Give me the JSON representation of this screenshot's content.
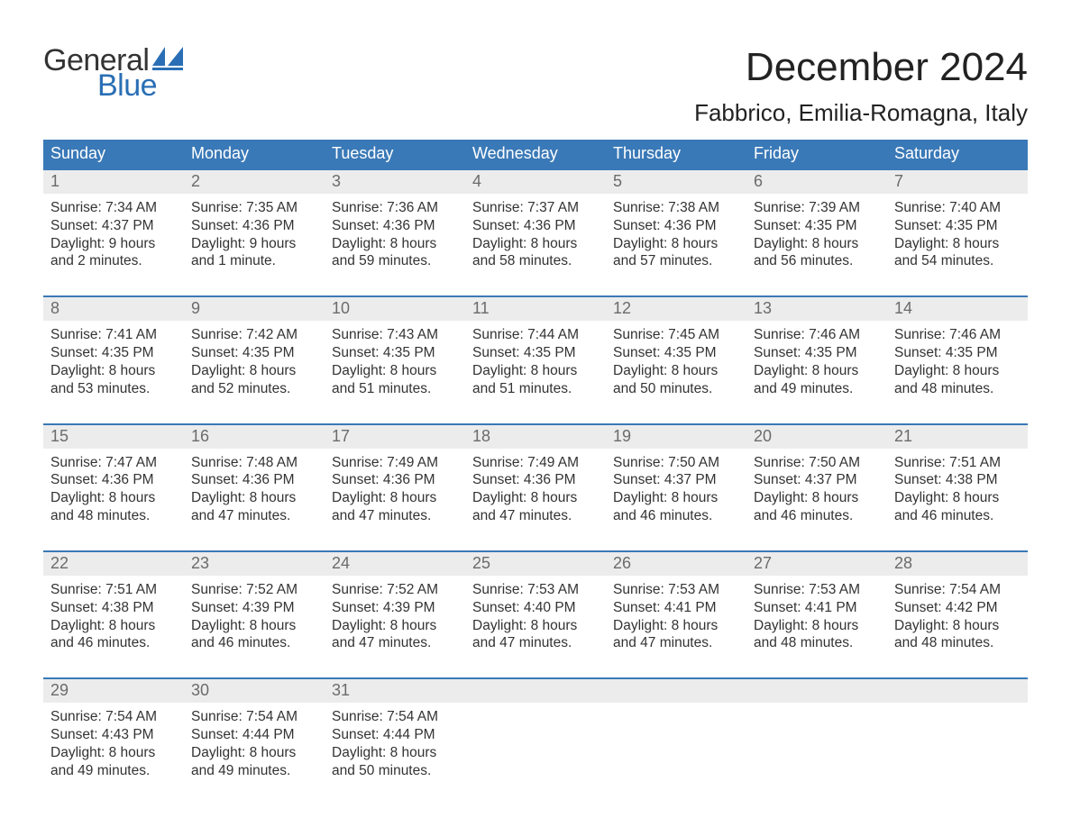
{
  "brand": {
    "word1": "General",
    "word2": "Blue",
    "accent_color": "#2a6fb5"
  },
  "title": "December 2024",
  "location": "Fabbrico, Emilia-Romagna, Italy",
  "colors": {
    "header_bg": "#3a79b7",
    "header_text": "#ffffff",
    "daynum_bg": "#ececec",
    "daynum_text": "#6b6b6b",
    "body_text": "#333333",
    "week_border": "#3a79b7",
    "page_bg": "#ffffff"
  },
  "typography": {
    "title_fontsize": 44,
    "location_fontsize": 26,
    "dow_fontsize": 18,
    "daynum_fontsize": 18,
    "cell_fontsize": 15.5,
    "logo_fontsize": 34
  },
  "layout": {
    "columns": 7,
    "rows": 5,
    "first_day_col": 0
  },
  "days_of_week": [
    "Sunday",
    "Monday",
    "Tuesday",
    "Wednesday",
    "Thursday",
    "Friday",
    "Saturday"
  ],
  "weeks": [
    [
      {
        "n": 1,
        "sunrise": "7:34 AM",
        "sunset": "4:37 PM",
        "daylight": "9 hours and 2 minutes."
      },
      {
        "n": 2,
        "sunrise": "7:35 AM",
        "sunset": "4:36 PM",
        "daylight": "9 hours and 1 minute."
      },
      {
        "n": 3,
        "sunrise": "7:36 AM",
        "sunset": "4:36 PM",
        "daylight": "8 hours and 59 minutes."
      },
      {
        "n": 4,
        "sunrise": "7:37 AM",
        "sunset": "4:36 PM",
        "daylight": "8 hours and 58 minutes."
      },
      {
        "n": 5,
        "sunrise": "7:38 AM",
        "sunset": "4:36 PM",
        "daylight": "8 hours and 57 minutes."
      },
      {
        "n": 6,
        "sunrise": "7:39 AM",
        "sunset": "4:35 PM",
        "daylight": "8 hours and 56 minutes."
      },
      {
        "n": 7,
        "sunrise": "7:40 AM",
        "sunset": "4:35 PM",
        "daylight": "8 hours and 54 minutes."
      }
    ],
    [
      {
        "n": 8,
        "sunrise": "7:41 AM",
        "sunset": "4:35 PM",
        "daylight": "8 hours and 53 minutes."
      },
      {
        "n": 9,
        "sunrise": "7:42 AM",
        "sunset": "4:35 PM",
        "daylight": "8 hours and 52 minutes."
      },
      {
        "n": 10,
        "sunrise": "7:43 AM",
        "sunset": "4:35 PM",
        "daylight": "8 hours and 51 minutes."
      },
      {
        "n": 11,
        "sunrise": "7:44 AM",
        "sunset": "4:35 PM",
        "daylight": "8 hours and 51 minutes."
      },
      {
        "n": 12,
        "sunrise": "7:45 AM",
        "sunset": "4:35 PM",
        "daylight": "8 hours and 50 minutes."
      },
      {
        "n": 13,
        "sunrise": "7:46 AM",
        "sunset": "4:35 PM",
        "daylight": "8 hours and 49 minutes."
      },
      {
        "n": 14,
        "sunrise": "7:46 AM",
        "sunset": "4:35 PM",
        "daylight": "8 hours and 48 minutes."
      }
    ],
    [
      {
        "n": 15,
        "sunrise": "7:47 AM",
        "sunset": "4:36 PM",
        "daylight": "8 hours and 48 minutes."
      },
      {
        "n": 16,
        "sunrise": "7:48 AM",
        "sunset": "4:36 PM",
        "daylight": "8 hours and 47 minutes."
      },
      {
        "n": 17,
        "sunrise": "7:49 AM",
        "sunset": "4:36 PM",
        "daylight": "8 hours and 47 minutes."
      },
      {
        "n": 18,
        "sunrise": "7:49 AM",
        "sunset": "4:36 PM",
        "daylight": "8 hours and 47 minutes."
      },
      {
        "n": 19,
        "sunrise": "7:50 AM",
        "sunset": "4:37 PM",
        "daylight": "8 hours and 46 minutes."
      },
      {
        "n": 20,
        "sunrise": "7:50 AM",
        "sunset": "4:37 PM",
        "daylight": "8 hours and 46 minutes."
      },
      {
        "n": 21,
        "sunrise": "7:51 AM",
        "sunset": "4:38 PM",
        "daylight": "8 hours and 46 minutes."
      }
    ],
    [
      {
        "n": 22,
        "sunrise": "7:51 AM",
        "sunset": "4:38 PM",
        "daylight": "8 hours and 46 minutes."
      },
      {
        "n": 23,
        "sunrise": "7:52 AM",
        "sunset": "4:39 PM",
        "daylight": "8 hours and 46 minutes."
      },
      {
        "n": 24,
        "sunrise": "7:52 AM",
        "sunset": "4:39 PM",
        "daylight": "8 hours and 47 minutes."
      },
      {
        "n": 25,
        "sunrise": "7:53 AM",
        "sunset": "4:40 PM",
        "daylight": "8 hours and 47 minutes."
      },
      {
        "n": 26,
        "sunrise": "7:53 AM",
        "sunset": "4:41 PM",
        "daylight": "8 hours and 47 minutes."
      },
      {
        "n": 27,
        "sunrise": "7:53 AM",
        "sunset": "4:41 PM",
        "daylight": "8 hours and 48 minutes."
      },
      {
        "n": 28,
        "sunrise": "7:54 AM",
        "sunset": "4:42 PM",
        "daylight": "8 hours and 48 minutes."
      }
    ],
    [
      {
        "n": 29,
        "sunrise": "7:54 AM",
        "sunset": "4:43 PM",
        "daylight": "8 hours and 49 minutes."
      },
      {
        "n": 30,
        "sunrise": "7:54 AM",
        "sunset": "4:44 PM",
        "daylight": "8 hours and 49 minutes."
      },
      {
        "n": 31,
        "sunrise": "7:54 AM",
        "sunset": "4:44 PM",
        "daylight": "8 hours and 50 minutes."
      },
      null,
      null,
      null,
      null
    ]
  ],
  "labels": {
    "sunrise": "Sunrise:",
    "sunset": "Sunset:",
    "daylight": "Daylight:"
  }
}
